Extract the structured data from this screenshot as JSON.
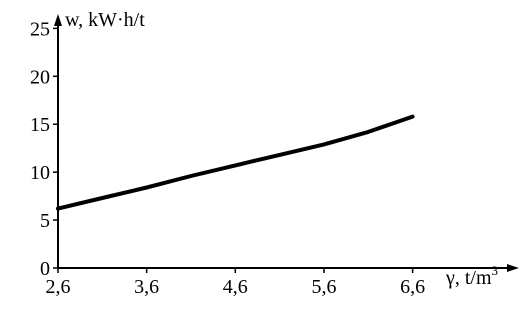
{
  "chart_data": {
    "type": "line",
    "title": "",
    "xlabel": "γ, t/m",
    "xlabel_superscript": "3",
    "ylabel": "w, kW·h/t",
    "xlim": [
      2.6,
      7.8
    ],
    "ylim": [
      0,
      26.5
    ],
    "x_ticks": [
      2.6,
      3.6,
      4.6,
      5.6,
      6.6
    ],
    "x_tick_labels": [
      "2,6",
      "3,6",
      "4,6",
      "5,6",
      "6,6"
    ],
    "y_ticks": [
      0,
      5,
      10,
      15,
      20,
      25
    ],
    "y_tick_labels": [
      "0",
      "5",
      "10",
      "15",
      "20",
      "25"
    ],
    "grid": false,
    "legend": "none",
    "series": [
      {
        "x": [
          2.6,
          3.1,
          3.6,
          4.1,
          4.6,
          5.1,
          5.6,
          6.1,
          6.6
        ],
        "y": [
          6.2,
          7.3,
          8.4,
          9.6,
          10.7,
          11.8,
          12.9,
          14.2,
          15.8
        ],
        "color": "#000000"
      }
    ]
  }
}
